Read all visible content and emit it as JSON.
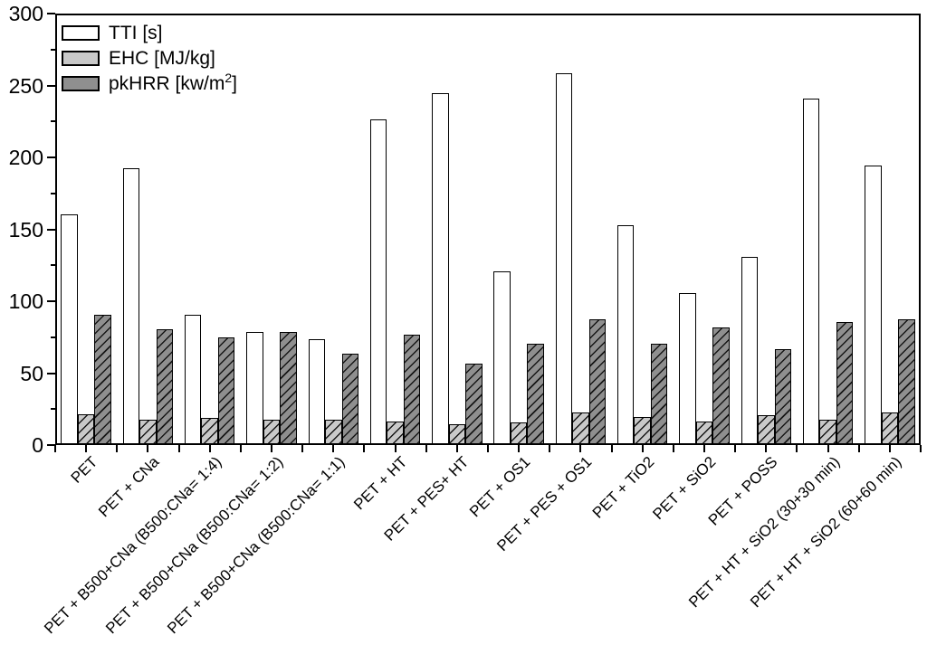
{
  "chart_data": {
    "type": "bar",
    "title": "",
    "xlabel": "",
    "ylabel": "",
    "ylim": [
      0,
      300
    ],
    "y_ticks_major": [
      0,
      50,
      100,
      150,
      200,
      250,
      300
    ],
    "y_minor_step": 25,
    "grid": "off",
    "legend_position": "top-left",
    "categories": [
      "PET",
      "PET + CNa",
      "PET + B500+CNa (B500:CNa= 1:4)",
      "PET + B500+CNa (B500:CNa= 1:2)",
      "PET + B500+CNa (B500:CNa= 1:1)",
      "PET + HT",
      "PET + PES+ HT",
      "PET + OS1",
      "PET + PES + OS1",
      "PET + TiO2",
      "PET + SiO2",
      "PET + POSS",
      "PET + HT + SiO2 (30+30 min)",
      "PET + HT + SiO2 (60+60 min)"
    ],
    "series": [
      {
        "name": "TTI [s]",
        "fill": "#ffffff",
        "hatch": false,
        "values": [
          160,
          192,
          90,
          78,
          73,
          226,
          244,
          120,
          258,
          152,
          105,
          130,
          240,
          194
        ]
      },
      {
        "name": "EHC [MJ/kg]",
        "fill": "#c9c9c9",
        "hatch": true,
        "values": [
          21,
          17,
          18,
          17,
          17,
          16,
          14,
          15,
          22,
          19,
          16,
          20,
          17,
          22
        ]
      },
      {
        "name": "pkHRR [kw/m2]",
        "fill": "#8f8f8f",
        "hatch": true,
        "values": [
          90,
          80,
          74,
          78,
          63,
          76,
          56,
          70,
          87,
          70,
          81,
          66,
          85,
          87
        ]
      }
    ]
  },
  "legend": {
    "items": [
      {
        "label": "TTI [s]",
        "sup": "",
        "close": ""
      },
      {
        "label": "EHC [MJ/kg]",
        "sup": "",
        "close": ""
      },
      {
        "label": "pkHRR [kw/m",
        "sup": "2",
        "close": "]"
      }
    ]
  },
  "colors": {
    "axis": "#000000",
    "background": "#ffffff",
    "bar_tti": "#ffffff",
    "bar_ehc": "#c9c9c9",
    "bar_pkhrr": "#8f8f8f",
    "hatch_line": "#161616"
  }
}
